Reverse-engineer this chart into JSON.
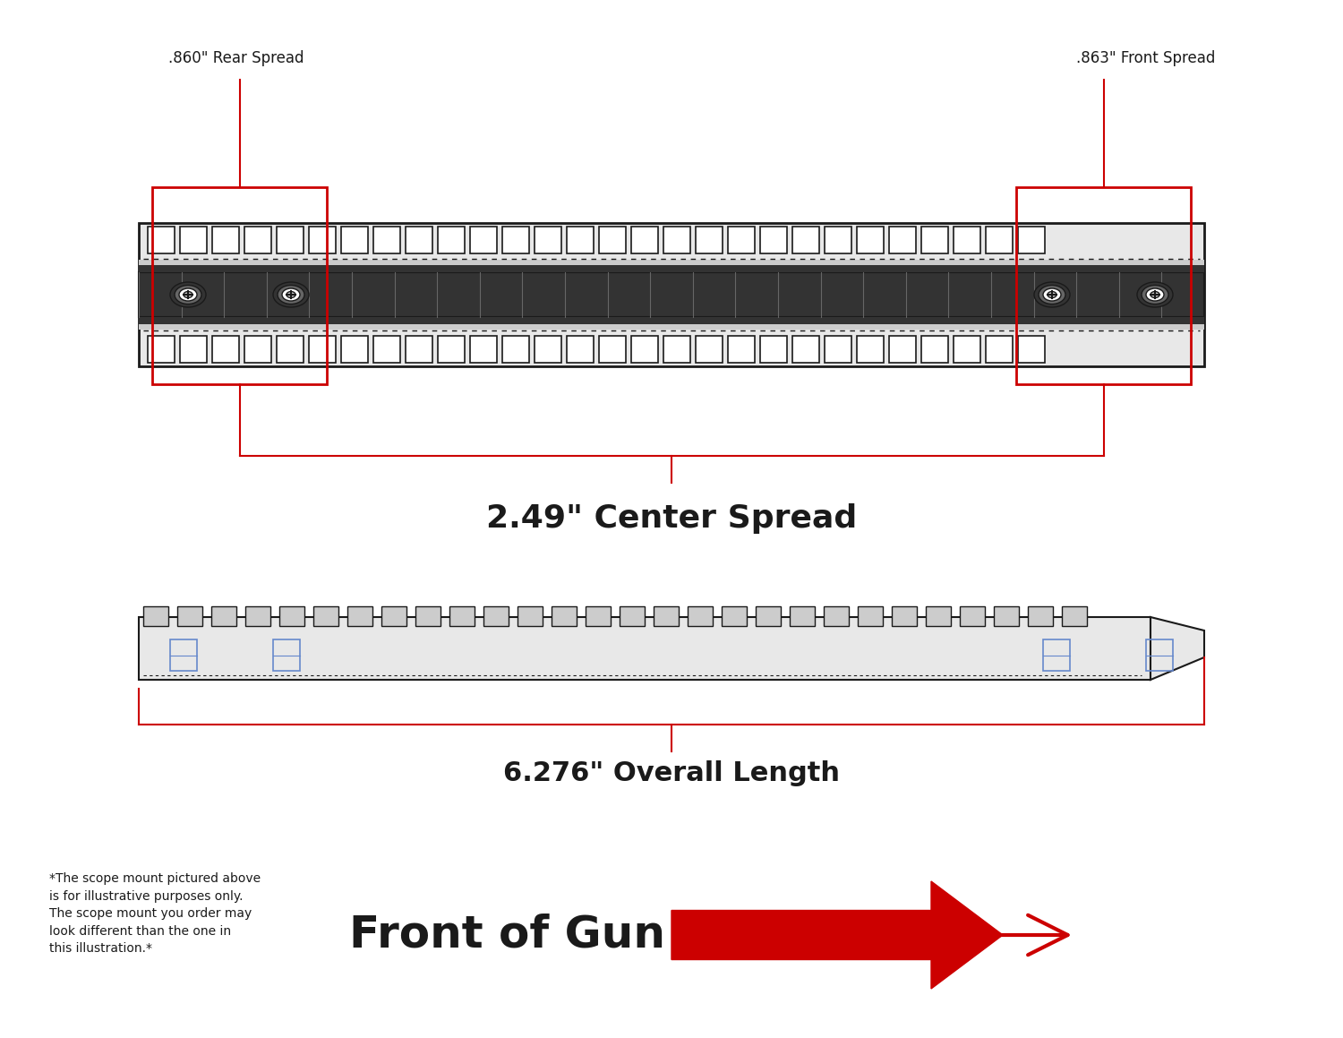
{
  "bg_color": "#ffffff",
  "line_color": "#1a1a1a",
  "red_color": "#cc0000",
  "dark_gray": "#333333",
  "mid_gray": "#666666",
  "light_gray": "#aaaaaa",
  "lighter_gray": "#cccccc",
  "very_light_gray": "#e8e8e8",
  "rail_color": "#444444",
  "label_rear_spread": ".860\" Rear Spread",
  "label_front_spread": ".863\" Front Spread",
  "label_center_spread": "2.49\" Center Spread",
  "label_overall_length": "6.276\" Overall Length",
  "label_front_of_gun": "Front of Gun",
  "footnote": "*The scope mount pictured above\nis for illustrative purposes only.\nThe scope mount you order may\nlook different than the one in\nthis illustration.*"
}
